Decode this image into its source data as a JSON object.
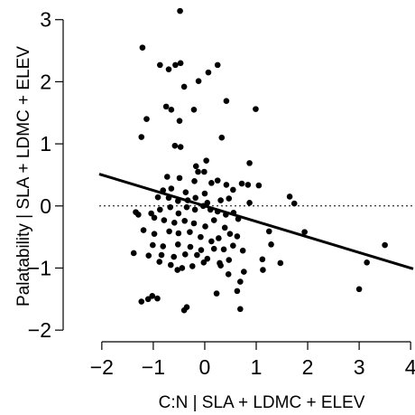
{
  "chart_data": {
    "type": "scatter",
    "title": "",
    "xlabel": "C:N | SLA + LDMC + ELEV",
    "ylabel": "Palatability | SLA + LDMC + ELEV",
    "xlim": [
      -2.05,
      4.05
    ],
    "ylim": [
      -2.1,
      3.2
    ],
    "x_ticks": [
      "−2",
      "−1",
      "0",
      "1",
      "2",
      "3",
      "4"
    ],
    "x_tick_values": [
      -2,
      -1,
      0,
      1,
      2,
      3,
      4
    ],
    "y_ticks": [
      "−2",
      "−1",
      "0",
      "1",
      "2",
      "3"
    ],
    "y_tick_values": [
      -2,
      -1,
      0,
      1,
      2,
      3
    ],
    "grid": false,
    "reference_line": {
      "y": 0,
      "style": "dotted"
    },
    "fit_line": {
      "intercept": 0.0,
      "slope": -0.25
    },
    "series": [
      {
        "marker_color": "#000000",
        "points": [
          [
            -0.48,
            3.14
          ],
          [
            -1.21,
            2.55
          ],
          [
            -0.87,
            2.27
          ],
          [
            -0.57,
            2.27
          ],
          [
            -0.47,
            2.3
          ],
          [
            0.25,
            2.27
          ],
          [
            0.07,
            2.15
          ],
          [
            -0.7,
            2.2
          ],
          [
            -0.4,
            1.92
          ],
          [
            -0.12,
            2.01
          ],
          [
            -1.13,
            1.4
          ],
          [
            -0.75,
            1.6
          ],
          [
            -0.65,
            1.55
          ],
          [
            -0.49,
            1.37
          ],
          [
            -0.21,
            1.55
          ],
          [
            0.42,
            1.69
          ],
          [
            0.99,
            1.56
          ],
          [
            -1.23,
            1.11
          ],
          [
            -0.58,
            0.97
          ],
          [
            -0.47,
            0.95
          ],
          [
            0.33,
            1.1
          ],
          [
            0.03,
            0.73
          ],
          [
            -0.17,
            0.64
          ],
          [
            -0.13,
            0.55
          ],
          [
            -0.01,
            0.55
          ],
          [
            0.13,
            0.37
          ],
          [
            0.25,
            0.41
          ],
          [
            0.42,
            0.34
          ],
          [
            0.55,
            0.26
          ],
          [
            0.72,
            0.36
          ],
          [
            0.84,
            0.34
          ],
          [
            0.87,
            0.69
          ],
          [
            1.05,
            0.33
          ],
          [
            0.87,
            0.05
          ],
          [
            -0.73,
            0.47
          ],
          [
            -0.49,
            0.45
          ],
          [
            -0.2,
            0.4
          ],
          [
            -0.81,
            0.25
          ],
          [
            -0.65,
            0.28
          ],
          [
            -0.37,
            0.22
          ],
          [
            0.0,
            0.2
          ],
          [
            -0.91,
            0.14
          ],
          [
            -0.7,
            0.13
          ],
          [
            -0.52,
            0.08
          ],
          [
            -0.33,
            0.09
          ],
          [
            -0.18,
            0.13
          ],
          [
            0.05,
            0.05
          ],
          [
            0.31,
            0.09
          ],
          [
            0.47,
            0.12
          ],
          [
            1.65,
            0.15
          ],
          [
            1.74,
            0.04
          ],
          [
            -1.34,
            -0.1
          ],
          [
            -1.04,
            -0.12
          ],
          [
            -0.87,
            -0.06
          ],
          [
            -0.67,
            -0.02
          ],
          [
            -0.51,
            -0.12
          ],
          [
            -0.35,
            -0.02
          ],
          [
            -0.19,
            -0.06
          ],
          [
            -0.03,
            0.0
          ],
          [
            0.11,
            -0.06
          ],
          [
            0.25,
            -0.09
          ],
          [
            0.41,
            -0.14
          ],
          [
            0.56,
            -0.11
          ],
          [
            0.65,
            -0.21
          ],
          [
            -1.29,
            -0.14
          ],
          [
            -0.98,
            -0.19
          ],
          [
            -0.79,
            -0.23
          ],
          [
            -0.59,
            -0.27
          ],
          [
            -0.39,
            -0.24
          ],
          [
            -0.21,
            -0.28
          ],
          [
            0.01,
            -0.33
          ],
          [
            0.18,
            -0.23
          ],
          [
            0.39,
            -0.35
          ],
          [
            1.25,
            -0.41
          ],
          [
            1.94,
            -0.42
          ],
          [
            -1.19,
            -0.39
          ],
          [
            -0.98,
            -0.45
          ],
          [
            -0.69,
            -0.41
          ],
          [
            -0.51,
            -0.44
          ],
          [
            -0.29,
            -0.42
          ],
          [
            -0.08,
            -0.5
          ],
          [
            0.13,
            -0.57
          ],
          [
            0.27,
            -0.52
          ],
          [
            0.49,
            -0.45
          ],
          [
            0.63,
            -0.49
          ],
          [
            -1.01,
            -0.63
          ],
          [
            -0.81,
            -0.65
          ],
          [
            -0.52,
            -0.62
          ],
          [
            -0.28,
            -0.66
          ],
          [
            -0.07,
            -0.71
          ],
          [
            0.18,
            -0.69
          ],
          [
            0.37,
            -0.7
          ],
          [
            0.55,
            -0.64
          ],
          [
            0.74,
            -0.72
          ],
          [
            1.29,
            -0.62
          ],
          [
            -1.38,
            -0.76
          ],
          [
            -1.09,
            -0.8
          ],
          [
            -0.84,
            -0.79
          ],
          [
            -0.6,
            -0.82
          ],
          [
            -0.38,
            -0.78
          ],
          [
            -0.15,
            -0.79
          ],
          [
            0.05,
            -0.85
          ],
          [
            0.29,
            -0.92
          ],
          [
            0.47,
            -0.87
          ],
          [
            1.12,
            -0.86
          ],
          [
            1.47,
            -0.92
          ],
          [
            -0.88,
            -0.9
          ],
          [
            -0.66,
            -0.95
          ],
          [
            -0.44,
            -1.0
          ],
          [
            -0.24,
            -0.97
          ],
          [
            -0.02,
            -0.91
          ],
          [
            0.31,
            -0.96
          ],
          [
            0.76,
            -1.06
          ],
          [
            -0.53,
            -1.03
          ],
          [
            0.46,
            -1.1
          ],
          [
            0.69,
            -1.22
          ],
          [
            1.13,
            -1.03
          ],
          [
            -1.02,
            -1.45
          ],
          [
            -1.1,
            -1.5
          ],
          [
            -0.92,
            -1.49
          ],
          [
            -1.23,
            -1.54
          ],
          [
            0.23,
            -1.41
          ],
          [
            0.63,
            -1.37
          ],
          [
            -0.35,
            -1.63
          ],
          [
            -0.4,
            -1.68
          ],
          [
            0.69,
            -1.66
          ],
          [
            3.0,
            -1.34
          ],
          [
            3.15,
            -0.91
          ],
          [
            3.5,
            -0.63
          ]
        ]
      }
    ]
  }
}
